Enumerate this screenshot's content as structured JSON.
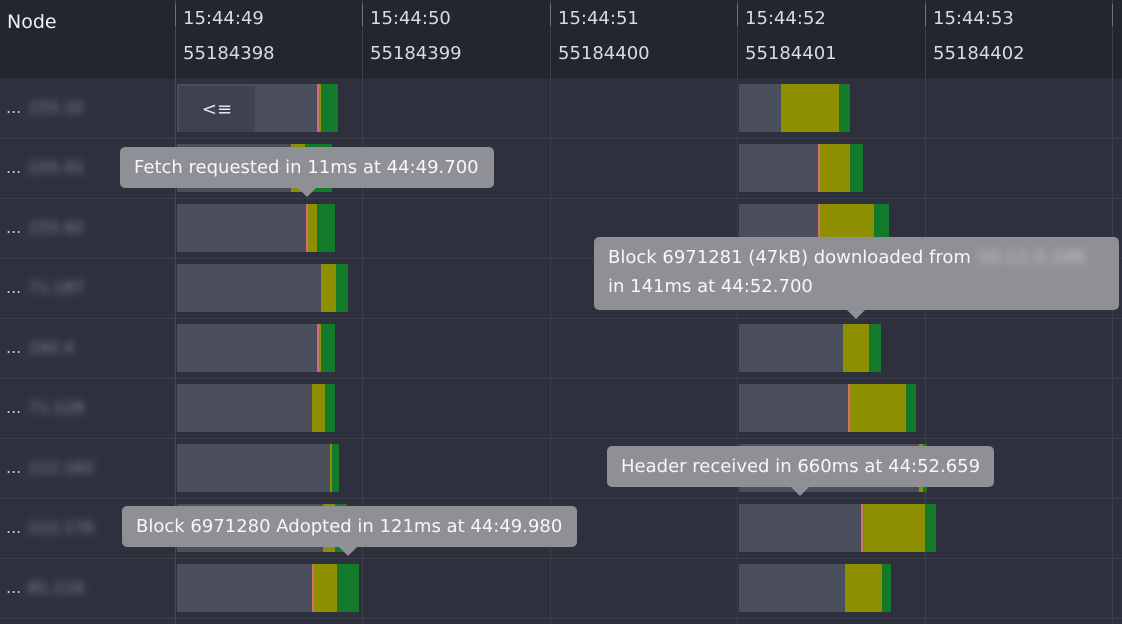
{
  "header": {
    "node_title": "Node",
    "columns": [
      {
        "time": "15:44:49",
        "block": "55184398"
      },
      {
        "time": "15:44:50",
        "block": "55184399"
      },
      {
        "time": "15:44:51",
        "block": "55184400"
      },
      {
        "time": "15:44:52",
        "block": "55184401"
      },
      {
        "time": "15:44:53",
        "block": "55184402"
      }
    ]
  },
  "rows": [
    {
      "prefix": "...",
      "label": ".155.32"
    },
    {
      "prefix": "...",
      "label": ".155.91"
    },
    {
      "prefix": "...",
      "label": ".155.92"
    },
    {
      "prefix": "...",
      "label": ".71.187"
    },
    {
      "prefix": "...",
      "label": ".192.4"
    },
    {
      "prefix": "...",
      "label": ".71.128"
    },
    {
      "prefix": "...",
      "label": ".112.162"
    },
    {
      "prefix": "...",
      "label": ".112.176"
    },
    {
      "prefix": "...",
      "label": ".81.116"
    }
  ],
  "collapse_button": {
    "label": "<≡"
  },
  "tooltips": {
    "fetch": "Fetch requested in 11ms at 44:49.700",
    "download_line1": "Block 6971281 (47kB) downloaded from",
    "download_source": "10.12.0.188",
    "download_line2": "in 141ms at 44:52.700",
    "header": "Header received in 660ms at 44:52.659",
    "adopted": "Block 6971280 Adopted in 121ms at 44:49.980"
  },
  "colors": {
    "background": "#2e313d",
    "header": "#23252f",
    "wait": "#4b4f5b",
    "fetch": "#d26f6f",
    "download": "#8e8f00",
    "adopted": "#137a2c",
    "tooltip": "#8f9095"
  }
}
